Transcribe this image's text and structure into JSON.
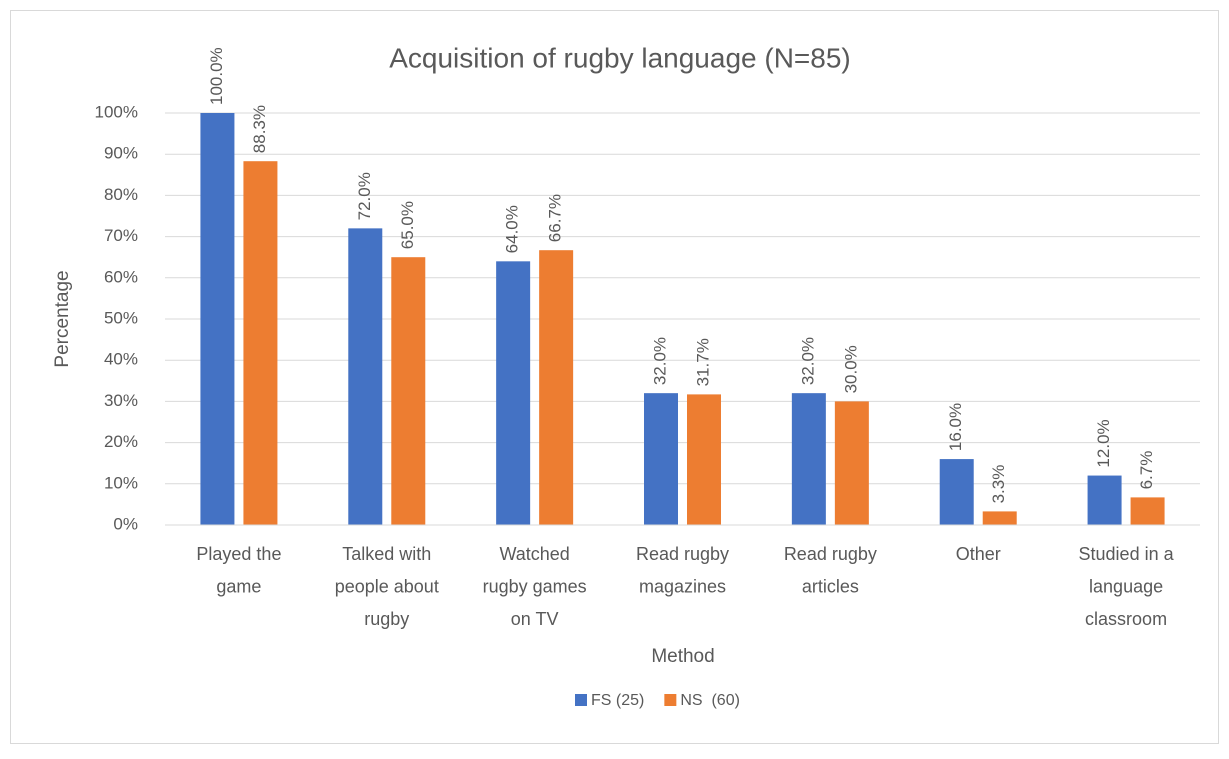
{
  "chart_data": {
    "type": "bar",
    "title": "Acquisition of rugby language (N=85)",
    "x_label": "Method",
    "y_label": "Percentage",
    "categories": [
      "Played the game",
      "Talked with people about rugby",
      "Watched rugby games on TV",
      "Read rugby magazines",
      "Read rugby articles",
      "Other",
      "Studied in a language classroom"
    ],
    "series": [
      {
        "name": "FS (25)",
        "color": "#4472c4",
        "values": [
          100.0,
          72.0,
          64.0,
          32.0,
          32.0,
          16.0,
          12.0
        ],
        "value_labels": [
          "100.0%",
          "72.0%",
          "64.0%",
          "32.0%",
          "32.0%",
          "16.0%",
          "12.0%"
        ]
      },
      {
        "name": "NS  (60)",
        "color": "#ed7d31",
        "values": [
          88.3,
          65.0,
          66.7,
          31.7,
          30.0,
          3.3,
          6.7
        ],
        "value_labels": [
          "88.3%",
          "65.0%",
          "66.7%",
          "31.7%",
          "30.0%",
          "3.3%",
          "6.7%"
        ]
      }
    ],
    "ylim": [
      0,
      100
    ],
    "yticks": [
      {
        "value": 0,
        "label": "0%"
      },
      {
        "value": 10,
        "label": "10%"
      },
      {
        "value": 20,
        "label": "20%"
      },
      {
        "value": 30,
        "label": "30%"
      },
      {
        "value": 40,
        "label": "40%"
      },
      {
        "value": 50,
        "label": "50%"
      },
      {
        "value": 60,
        "label": "60%"
      },
      {
        "value": 70,
        "label": "70%"
      },
      {
        "value": 80,
        "label": "80%"
      },
      {
        "value": 90,
        "label": "90%"
      },
      {
        "value": 100,
        "label": "100%"
      }
    ],
    "grid": true,
    "legend": "bottom"
  }
}
